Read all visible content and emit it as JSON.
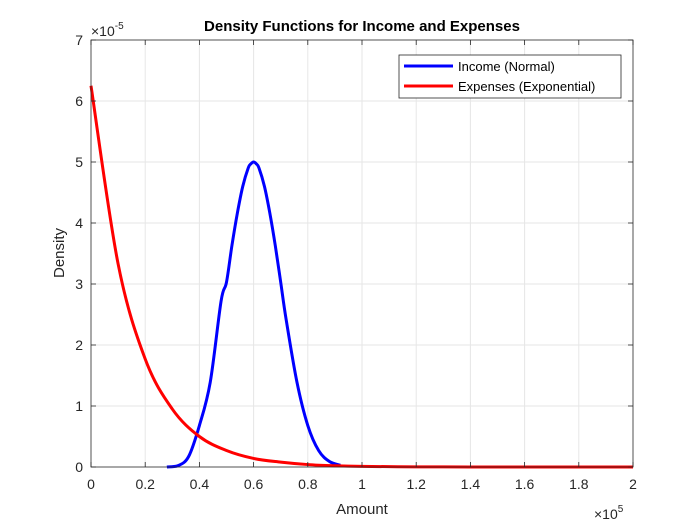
{
  "chart_data": {
    "type": "line",
    "title": "Density Functions for Income and Expenses",
    "xlabel": "Amount",
    "ylabel": "Density",
    "x_exponent_label": "×10",
    "x_exponent": "5",
    "y_exponent_label": "×10",
    "y_exponent": "-5",
    "xlim": [
      0,
      200000
    ],
    "ylim": [
      0,
      7e-05
    ],
    "x_tick_labels": [
      "0",
      "0.2",
      "0.4",
      "0.6",
      "0.8",
      "1",
      "1.2",
      "1.4",
      "1.6",
      "1.8",
      "2"
    ],
    "y_tick_labels": [
      "0",
      "1",
      "2",
      "3",
      "4",
      "5",
      "6",
      "7"
    ],
    "grid": true,
    "legend_position": "top-right",
    "series": [
      {
        "name": "Income (Normal)",
        "color": "#0000ff",
        "x": [
          28000,
          32000,
          36000,
          40000,
          44000,
          48000,
          50000,
          52000,
          54000,
          56000,
          58000,
          59000,
          60000,
          61000,
          62000,
          64000,
          66000,
          68000,
          70000,
          72000,
          76000,
          80000,
          84000,
          88000,
          92000
        ],
        "y": [
          0.0,
          2e-07,
          1.7e-06,
          6.8e-06,
          1.39e-05,
          2.72e-05,
          3.03e-05,
          3.63e-05,
          4.16e-05,
          4.6e-05,
          4.9e-05,
          4.97e-05,
          5e-05,
          4.97e-05,
          4.9e-05,
          4.6e-05,
          4.16e-05,
          3.63e-05,
          3.03e-05,
          2.42e-05,
          1.39e-05,
          6.8e-06,
          2.7e-06,
          9e-07,
          3e-07
        ]
      },
      {
        "name": "Expenses (Exponential)",
        "color": "#ff0000",
        "x": [
          0,
          10000,
          20000,
          30000,
          40000,
          50000,
          60000,
          70000,
          80000,
          90000,
          100000,
          120000,
          140000,
          160000,
          180000,
          200000
        ],
        "y": [
          6.25e-05,
          3.33e-05,
          1.77e-05,
          9.5e-06,
          5e-06,
          2.7e-06,
          1.4e-06,
          8e-07,
          4e-07,
          2e-07,
          1e-07,
          3e-08,
          1e-08,
          0.0,
          0.0,
          0.0
        ]
      }
    ]
  }
}
